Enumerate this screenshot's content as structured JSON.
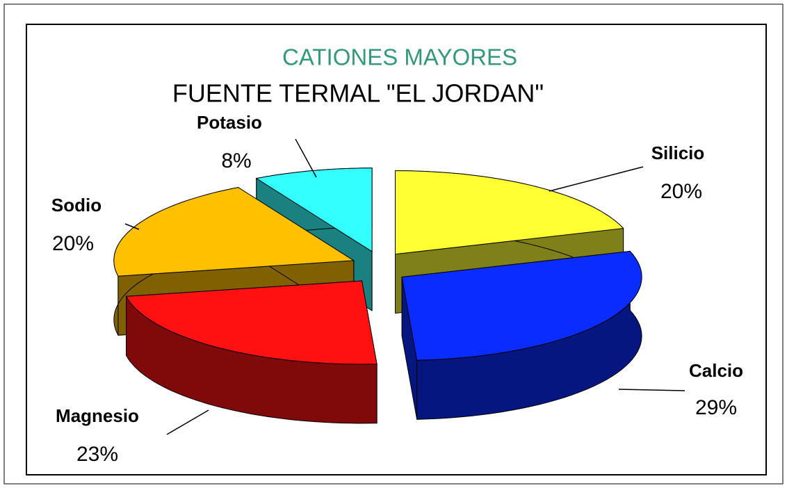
{
  "chart_data": {
    "type": "pie",
    "title": "CATIONES MAYORES",
    "subtitle": "FUENTE TERMAL \"EL JORDAN\"",
    "categories": [
      "Silicio",
      "Calcio",
      "Magnesio",
      "Sodio",
      "Potasio"
    ],
    "values": [
      20,
      29,
      23,
      20,
      8
    ],
    "value_labels": [
      "20%",
      "29%",
      "23%",
      "20%",
      "8%"
    ],
    "colors": [
      "#ffff33",
      "#0a2cff",
      "#ff1111",
      "#ffc000",
      "#33ffff"
    ]
  }
}
